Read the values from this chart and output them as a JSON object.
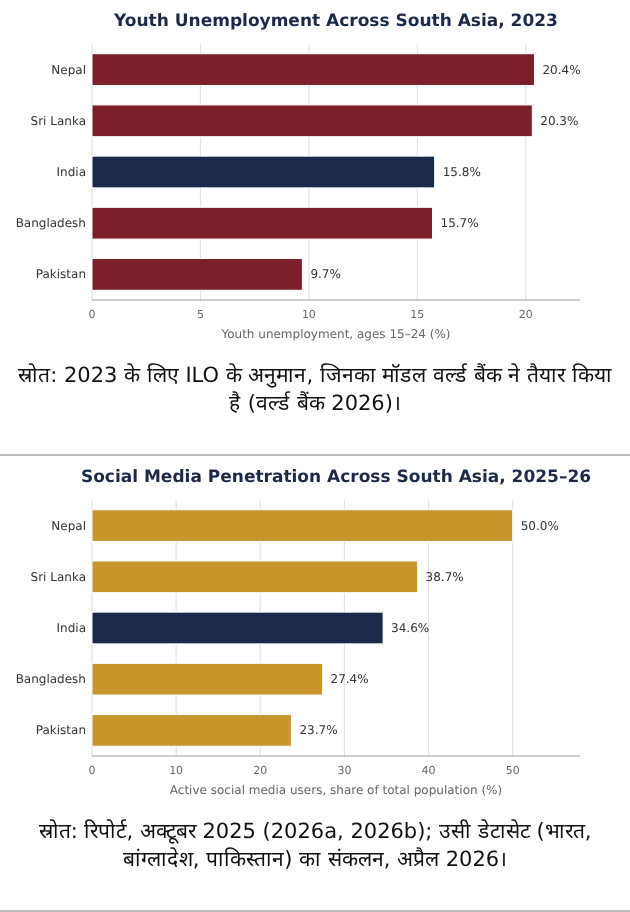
{
  "chart_data": [
    {
      "type": "bar",
      "orientation": "horizontal",
      "title": "Youth Unemployment Across South Asia, 2023",
      "xlabel": "Youth unemployment, ages 15–24 (%)",
      "categories": [
        "Nepal",
        "Sri Lanka",
        "India",
        "Bangladesh",
        "Pakistan"
      ],
      "values": [
        20.4,
        20.3,
        15.8,
        15.7,
        9.7
      ],
      "value_labels": [
        "20.4%",
        "20.3%",
        "15.8%",
        "15.7%",
        "9.7%"
      ],
      "colors": [
        "#7b1f2b",
        "#7b1f2b",
        "#1c2a4a",
        "#7b1f2b",
        "#7b1f2b"
      ],
      "xlim": [
        0,
        22.5
      ],
      "xticks": [
        0,
        5,
        10,
        15,
        20
      ],
      "grid": "x",
      "annotations": [
        "स्रोत: 2023 के लिए ILO के अनुमान, जिनका मॉडल वर्ल्ड बैंक ने तैयार किया है (वर्ल्ड बैंक 2026)।"
      ]
    },
    {
      "type": "bar",
      "orientation": "horizontal",
      "title": "Social Media Penetration Across South Asia, 2025–26",
      "xlabel": "Active social media users, share of total population (%)",
      "categories": [
        "Nepal",
        "Sri Lanka",
        "India",
        "Bangladesh",
        "Pakistan"
      ],
      "values": [
        50.0,
        38.7,
        34.6,
        27.4,
        23.7
      ],
      "value_labels": [
        "50.0%",
        "38.7%",
        "34.6%",
        "27.4%",
        "23.7%"
      ],
      "colors": [
        "#c9962e",
        "#c9962e",
        "#1c2a4a",
        "#c9962e",
        "#c9962e"
      ],
      "xlim": [
        0,
        58
      ],
      "xticks": [
        0,
        10,
        20,
        30,
        40,
        50
      ],
      "grid": "x",
      "annotations": [
        "स्रोत: रिपोर्ट, अक्टूबर 2025 (2026a, 2026b); उसी डेटासेट (भारत, बांग्लादेश, पाकिस्तान) का संकलन, अप्रैल 2026।"
      ]
    }
  ]
}
